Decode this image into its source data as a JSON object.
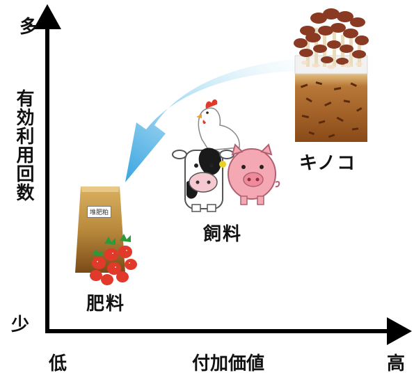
{
  "axes": {
    "y_title": "有効利用回数",
    "y_high": "多",
    "y_low": "少",
    "x_title": "付加価値",
    "x_low": "低",
    "x_high": "高"
  },
  "items": {
    "mushroom": "キノコ",
    "feed": "飼料",
    "fertilizer": "肥料"
  },
  "bag_tag": "堆肥粕",
  "colors": {
    "axis": "#000000",
    "arrow_light": "#dff3fb",
    "arrow_dark": "#5ab8e8",
    "soil": "#9a5a22",
    "bag": "#b07a30",
    "mushroom_cap": "#8a3a22",
    "strawberry": "#e23a2a",
    "pig": "#f4a8b4"
  }
}
